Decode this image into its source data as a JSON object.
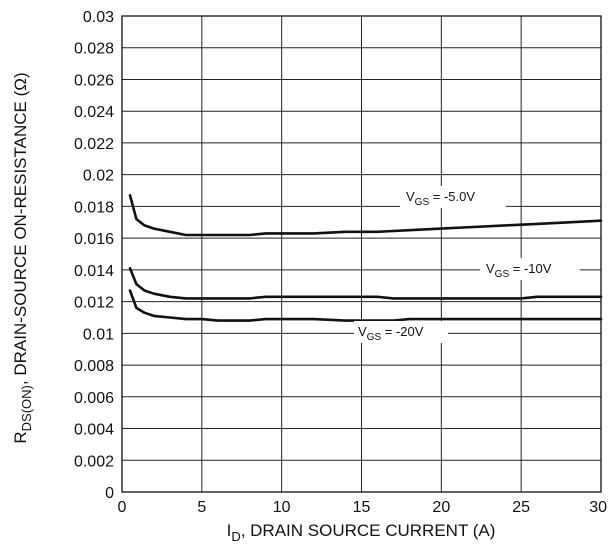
{
  "chart_data": {
    "type": "line",
    "title": "",
    "xlabel_main": "I",
    "xlabel_sub": "D",
    "xlabel_rest": ", DRAIN SOURCE CURRENT (A)",
    "ylabel_main": "R",
    "ylabel_sub": "DS(ON)",
    "ylabel_rest": ", DRAIN-SOURCE ON-RESISTANCE (Ω)",
    "xlim": [
      0,
      30
    ],
    "ylim": [
      0,
      0.03
    ],
    "x_ticks": [
      "0",
      "5",
      "10",
      "15",
      "20",
      "25",
      "30"
    ],
    "y_ticks": [
      "0",
      "0.002",
      "0.004",
      "0.006",
      "0.008",
      "0.01",
      "0.012",
      "0.014",
      "0.016",
      "0.018",
      "0.02",
      "0.022",
      "0.024",
      "0.026",
      "0.028",
      "0.03"
    ],
    "grid": true,
    "series": [
      {
        "label_main": "V",
        "label_sub": "GS",
        "label_rest": " = -5.0V",
        "x": [
          0.5,
          0.9,
          1.4,
          2,
          3,
          4,
          5,
          6,
          7,
          8,
          9,
          10,
          12,
          14,
          16,
          18,
          20,
          22,
          24,
          26,
          28,
          30
        ],
        "y": [
          0.0187,
          0.0172,
          0.0168,
          0.0166,
          0.0164,
          0.0162,
          0.0162,
          0.0162,
          0.0162,
          0.0162,
          0.0163,
          0.0163,
          0.0163,
          0.0164,
          0.0164,
          0.0165,
          0.0166,
          0.0167,
          0.0168,
          0.0169,
          0.017,
          0.0171
        ]
      },
      {
        "label_main": "V",
        "label_sub": "GS",
        "label_rest": " = -10V",
        "x": [
          0.5,
          0.9,
          1.4,
          2,
          3,
          4,
          5,
          6,
          7,
          8,
          9,
          10,
          12,
          14,
          16,
          17,
          18,
          20,
          22,
          24,
          25,
          26,
          28,
          30
        ],
        "y": [
          0.0141,
          0.0131,
          0.0127,
          0.0125,
          0.0123,
          0.0122,
          0.0122,
          0.0122,
          0.0122,
          0.0122,
          0.0123,
          0.0123,
          0.0123,
          0.0123,
          0.0123,
          0.0122,
          0.0122,
          0.0122,
          0.0122,
          0.0122,
          0.0122,
          0.0123,
          0.0123,
          0.0123
        ]
      },
      {
        "label_main": "V",
        "label_sub": "GS",
        "label_rest": " = -20V",
        "x": [
          0.5,
          0.9,
          1.4,
          2,
          3,
          4,
          5,
          6,
          7,
          8,
          9,
          10,
          12,
          14,
          16,
          17,
          18,
          20,
          22,
          24,
          26,
          28,
          30
        ],
        "y": [
          0.0127,
          0.0116,
          0.0113,
          0.0111,
          0.011,
          0.0109,
          0.0109,
          0.0108,
          0.0108,
          0.0108,
          0.0109,
          0.0109,
          0.0109,
          0.0108,
          0.0108,
          0.0108,
          0.0109,
          0.0109,
          0.0109,
          0.0109,
          0.0109,
          0.0109,
          0.0109
        ]
      }
    ]
  }
}
